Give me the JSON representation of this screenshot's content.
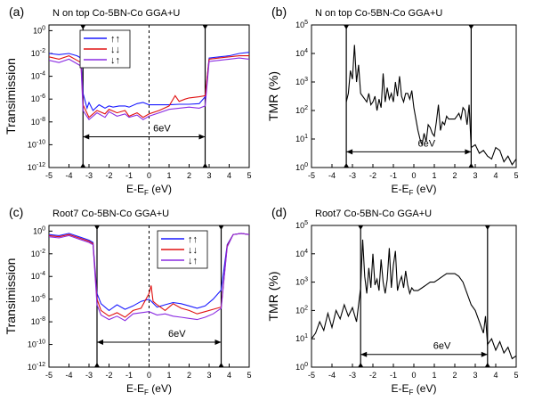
{
  "chart_data": [
    {
      "panel_label": "(a)",
      "title": "N on top Co-5BN-Co GGA+U",
      "type": "line",
      "xlabel_main": "E-E",
      "xlabel_sub": "F",
      "xlabel_unit": " (eV)",
      "ylabel": "Transimission",
      "xlim": [
        -5,
        5
      ],
      "ylim_log10": [
        -12,
        0.5
      ],
      "y_scale": "log",
      "x_ticks": [
        "-5",
        "-4",
        "-3",
        "-2",
        "-1",
        "0",
        "1",
        "2",
        "3",
        "4",
        "5"
      ],
      "y_ticks": [
        {
          "exp": 0,
          "label": "10",
          "sup": "0"
        },
        {
          "exp": -2,
          "label": "10",
          "sup": "-2"
        },
        {
          "exp": -4,
          "label": "10",
          "sup": "-4"
        },
        {
          "exp": -6,
          "label": "10",
          "sup": "-6"
        },
        {
          "exp": -8,
          "label": "10",
          "sup": "-8"
        },
        {
          "exp": -10,
          "label": "10",
          "sup": "-10"
        },
        {
          "exp": -12,
          "label": "10",
          "sup": "-12"
        }
      ],
      "vlines": [
        -3.3,
        2.8
      ],
      "fermi_line": 0,
      "gap_annotation": {
        "text": "6eV",
        "from": -3.3,
        "to": 2.8,
        "at_log10": -9.3
      },
      "legend": {
        "position": "top-left",
        "labels": [
          "↑↑",
          "↓↓",
          "↓↑"
        ]
      },
      "series": [
        {
          "color": "#1a1aff",
          "x": [
            -5,
            -4.5,
            -4,
            -3.6,
            -3.4,
            -3.3,
            -3.1,
            -3.0,
            -2.8,
            -2.5,
            -2.2,
            -2.0,
            -1.8,
            -1.5,
            -1.2,
            -1.0,
            -0.6,
            -0.3,
            0,
            0.5,
            1.0,
            1.5,
            2.0,
            2.5,
            2.8,
            3.0,
            3.5,
            4.0,
            4.5,
            5
          ],
          "y": [
            -2.0,
            -2.1,
            -2.0,
            -2.2,
            -2.4,
            -5.5,
            -6.8,
            -6.3,
            -7.0,
            -6.5,
            -6.8,
            -6.6,
            -6.7,
            -6.6,
            -6.6,
            -6.7,
            -6.4,
            -6.3,
            -6.5,
            -6.5,
            -6.5,
            -6.45,
            -6.45,
            -6.4,
            -5.8,
            -2.4,
            -2.3,
            -2.2,
            -2.0,
            -1.9
          ]
        },
        {
          "color": "#e01010",
          "x": [
            -5,
            -4.5,
            -4,
            -3.6,
            -3.4,
            -3.3,
            -3.0,
            -2.6,
            -2.2,
            -2.0,
            -1.6,
            -1.2,
            -1.0,
            -0.6,
            -0.3,
            0,
            0.5,
            1.0,
            1.3,
            1.5,
            1.8,
            2.0,
            2.5,
            2.8,
            3.0,
            3.5,
            4.0,
            4.5,
            5
          ],
          "y": [
            -2.3,
            -2.5,
            -2.2,
            -2.6,
            -2.8,
            -6.5,
            -7.6,
            -7.0,
            -7.3,
            -6.9,
            -7.2,
            -7.0,
            -7.5,
            -7.2,
            -7.6,
            -7.3,
            -7.0,
            -6.6,
            -5.7,
            -6.2,
            -6.0,
            -5.9,
            -5.8,
            -5.7,
            -2.5,
            -2.4,
            -2.3,
            -2.2,
            -2.2
          ]
        },
        {
          "color": "#8a2be2",
          "x": [
            -5,
            -4.5,
            -4,
            -3.6,
            -3.4,
            -3.3,
            -3.0,
            -2.6,
            -2.2,
            -2.0,
            -1.6,
            -1.2,
            -1.0,
            -0.6,
            -0.3,
            0,
            0.5,
            1.0,
            1.5,
            2.0,
            2.5,
            2.8,
            3.0,
            3.5,
            4.0,
            4.5,
            5
          ],
          "y": [
            -2.6,
            -2.8,
            -2.5,
            -2.9,
            -3.1,
            -7.0,
            -7.8,
            -7.2,
            -7.6,
            -7.1,
            -7.5,
            -7.3,
            -7.6,
            -7.4,
            -7.8,
            -7.5,
            -7.2,
            -6.9,
            -6.8,
            -6.7,
            -6.8,
            -6.6,
            -2.7,
            -2.6,
            -2.5,
            -2.4,
            -2.5
          ]
        }
      ]
    },
    {
      "panel_label": "(b)",
      "title": "N on top Co-5BN-Co GGA+U",
      "type": "line",
      "xlabel_main": "E-E",
      "xlabel_sub": "F",
      "xlabel_unit": " (eV)",
      "ylabel": "TMR (%)",
      "xlim": [
        -5,
        5
      ],
      "ylim_log10": [
        0,
        5
      ],
      "y_scale": "log",
      "x_ticks": [
        "-5",
        "-4",
        "-3",
        "-2",
        "-1",
        "0",
        "1",
        "2",
        "3",
        "4",
        "5"
      ],
      "y_ticks": [
        {
          "exp": 0,
          "label": "10",
          "sup": "0"
        },
        {
          "exp": 1,
          "label": "10",
          "sup": "1"
        },
        {
          "exp": 2,
          "label": "10",
          "sup": "2"
        },
        {
          "exp": 3,
          "label": "10",
          "sup": "3"
        },
        {
          "exp": 4,
          "label": "10",
          "sup": "4"
        },
        {
          "exp": 5,
          "label": "10",
          "sup": "5"
        }
      ],
      "vlines": [
        -3.3,
        2.8
      ],
      "gap_annotation": {
        "text": "6eV",
        "from": -3.3,
        "to": 2.8,
        "at_log10": 0.55
      },
      "series": [
        {
          "color": "#000000",
          "x": [
            -3.3,
            -3.2,
            -3.1,
            -3.0,
            -2.9,
            -2.8,
            -2.7,
            -2.6,
            -2.5,
            -2.4,
            -2.3,
            -2.2,
            -2.1,
            -2.0,
            -1.9,
            -1.8,
            -1.7,
            -1.6,
            -1.5,
            -1.4,
            -1.3,
            -1.2,
            -1.1,
            -1.0,
            -0.9,
            -0.8,
            -0.7,
            -0.6,
            -0.5,
            -0.4,
            -0.3,
            -0.2,
            -0.1,
            0,
            0.1,
            0.2,
            0.3,
            0.4,
            0.5,
            0.6,
            0.7,
            0.8,
            0.9,
            1.0,
            1.1,
            1.2,
            1.3,
            1.4,
            1.5,
            1.6,
            1.7,
            1.8,
            1.9,
            2.0,
            2.1,
            2.2,
            2.3,
            2.4,
            2.5,
            2.6,
            2.7,
            2.8,
            3.0,
            3.2,
            3.4,
            3.6,
            3.8,
            4.0,
            4.2,
            4.4,
            4.6,
            4.8,
            5.0
          ],
          "y": [
            2.3,
            2.6,
            3.4,
            3.1,
            4.3,
            3.0,
            3.6,
            2.6,
            2.5,
            2.4,
            2.3,
            2.6,
            2.2,
            2.3,
            2.5,
            2.0,
            2.4,
            2.1,
            3.3,
            2.3,
            2.8,
            2.4,
            2.6,
            2.3,
            3.0,
            2.5,
            3.2,
            2.5,
            2.3,
            2.6,
            2.6,
            2.4,
            2.7,
            2.1,
            1.7,
            1.3,
            1.0,
            0.8,
            1.2,
            0.9,
            1.5,
            1.4,
            1.2,
            1.1,
            1.6,
            2.2,
            1.3,
            1.6,
            1.5,
            1.8,
            1.7,
            1.7,
            1.7,
            1.7,
            1.8,
            1.9,
            1.7,
            2.1,
            2.0,
            1.5,
            2.2,
            0.7,
            0.8,
            0.5,
            0.6,
            0.4,
            0.3,
            0.7,
            0.6,
            0.2,
            0.4,
            0.1,
            0.3
          ]
        }
      ]
    },
    {
      "panel_label": "(c)",
      "title": "Root7 Co-5BN-Co GGA+U",
      "type": "line",
      "xlabel_main": "E-E",
      "xlabel_sub": "F",
      "xlabel_unit": " (eV)",
      "ylabel": "Transimission",
      "xlim": [
        -5,
        5
      ],
      "ylim_log10": [
        -12,
        0.5
      ],
      "y_scale": "log",
      "x_ticks": [
        "-5",
        "-4",
        "-3",
        "-2",
        "-1",
        "0",
        "1",
        "2",
        "3",
        "4",
        "5"
      ],
      "y_ticks": [
        {
          "exp": 0,
          "label": "10",
          "sup": "0"
        },
        {
          "exp": -2,
          "label": "10",
          "sup": "-2"
        },
        {
          "exp": -4,
          "label": "10",
          "sup": "-4"
        },
        {
          "exp": -6,
          "label": "10",
          "sup": "-6"
        },
        {
          "exp": -8,
          "label": "10",
          "sup": "-8"
        },
        {
          "exp": -10,
          "label": "10",
          "sup": "-10"
        },
        {
          "exp": -12,
          "label": "10",
          "sup": "-12"
        }
      ],
      "vlines": [
        -2.6,
        3.6
      ],
      "fermi_line": 0,
      "gap_annotation": {
        "text": "6eV",
        "from": -2.6,
        "to": 3.6,
        "at_log10": -9.8
      },
      "legend": {
        "position": "top-right",
        "labels": [
          "↑↑",
          "↓↓",
          "↓↑"
        ]
      },
      "series": [
        {
          "color": "#1a1aff",
          "x": [
            -5,
            -4.5,
            -4,
            -3.5,
            -3.0,
            -2.8,
            -2.6,
            -2.4,
            -2.0,
            -1.6,
            -1.2,
            -0.8,
            -0.4,
            0,
            0.4,
            0.8,
            1.2,
            1.6,
            2.0,
            2.4,
            2.8,
            3.2,
            3.6,
            3.9,
            4.2,
            4.6,
            5
          ],
          "y": [
            -0.3,
            -0.4,
            -0.2,
            -0.5,
            -0.8,
            -1.0,
            -5.5,
            -6.4,
            -7.0,
            -6.5,
            -6.9,
            -6.6,
            -6.2,
            -6.0,
            -6.7,
            -6.5,
            -6.3,
            -6.4,
            -6.6,
            -6.8,
            -6.6,
            -6.0,
            -5.2,
            -1.2,
            -0.3,
            -0.2,
            -0.3
          ]
        },
        {
          "color": "#e01010",
          "x": [
            -5,
            -4.5,
            -4,
            -3.5,
            -3.0,
            -2.8,
            -2.6,
            -2.4,
            -2.0,
            -1.6,
            -1.2,
            -0.8,
            -0.4,
            0,
            0.1,
            0.2,
            0.4,
            0.8,
            1.2,
            1.6,
            2.0,
            2.4,
            2.8,
            3.2,
            3.6,
            3.9,
            4.2,
            4.6,
            5
          ],
          "y": [
            -0.4,
            -0.5,
            -0.3,
            -0.6,
            -0.9,
            -1.1,
            -6.0,
            -7.0,
            -7.5,
            -7.2,
            -7.6,
            -7.0,
            -6.8,
            -5.5,
            -4.8,
            -6.2,
            -6.5,
            -7.0,
            -6.4,
            -6.8,
            -7.0,
            -7.3,
            -7.1,
            -6.9,
            -6.7,
            -1.3,
            -0.3,
            -0.2,
            -0.3
          ]
        },
        {
          "color": "#8a2be2",
          "x": [
            -5,
            -4.5,
            -4,
            -3.5,
            -3.0,
            -2.8,
            -2.6,
            -2.4,
            -2.0,
            -1.6,
            -1.2,
            -0.8,
            -0.4,
            0,
            0.4,
            0.8,
            1.2,
            1.6,
            2.0,
            2.4,
            2.8,
            3.2,
            3.6,
            3.9,
            4.2,
            4.6,
            5
          ],
          "y": [
            -0.5,
            -0.6,
            -0.4,
            -0.7,
            -1.0,
            -1.2,
            -6.5,
            -7.4,
            -7.8,
            -7.5,
            -7.9,
            -7.3,
            -7.2,
            -7.1,
            -7.4,
            -7.3,
            -7.5,
            -7.6,
            -7.7,
            -7.8,
            -7.6,
            -7.3,
            -6.8,
            -1.4,
            -0.3,
            -0.2,
            -0.3
          ]
        }
      ]
    },
    {
      "panel_label": "(d)",
      "title": "Root7 Co-5BN-Co GGA+U",
      "type": "line",
      "xlabel_main": "E-E",
      "xlabel_sub": "F",
      "xlabel_unit": " (eV)",
      "ylabel": "TMR (%)",
      "xlim": [
        -5,
        5
      ],
      "ylim_log10": [
        0,
        5
      ],
      "y_scale": "log",
      "x_ticks": [
        "-5",
        "-4",
        "-3",
        "-2",
        "-1",
        "0",
        "1",
        "2",
        "3",
        "4",
        "5"
      ],
      "y_ticks": [
        {
          "exp": 0,
          "label": "10",
          "sup": "0"
        },
        {
          "exp": 1,
          "label": "10",
          "sup": "1"
        },
        {
          "exp": 2,
          "label": "10",
          "sup": "2"
        },
        {
          "exp": 3,
          "label": "10",
          "sup": "3"
        },
        {
          "exp": 4,
          "label": "10",
          "sup": "4"
        },
        {
          "exp": 5,
          "label": "10",
          "sup": "5"
        }
      ],
      "vlines": [
        -2.6,
        3.6
      ],
      "gap_annotation": {
        "text": "6eV",
        "from": -2.6,
        "to": 3.6,
        "at_log10": 0.45
      },
      "series": [
        {
          "color": "#000000",
          "x": [
            -5,
            -4.8,
            -4.6,
            -4.4,
            -4.2,
            -4.0,
            -3.8,
            -3.6,
            -3.4,
            -3.2,
            -3.0,
            -2.8,
            -2.6,
            -2.5,
            -2.4,
            -2.3,
            -2.2,
            -2.1,
            -2.0,
            -1.9,
            -1.8,
            -1.7,
            -1.6,
            -1.5,
            -1.4,
            -1.3,
            -1.2,
            -1.1,
            -1.0,
            -0.9,
            -0.8,
            -0.7,
            -0.6,
            -0.5,
            -0.4,
            -0.3,
            -0.2,
            -0.1,
            0,
            0.2,
            0.4,
            0.6,
            0.8,
            1.0,
            1.2,
            1.4,
            1.6,
            1.8,
            2.0,
            2.2,
            2.4,
            2.6,
            2.8,
            3.0,
            3.2,
            3.4,
            3.5,
            3.6,
            3.8,
            4.0,
            4.2,
            4.4,
            4.6,
            4.8,
            5.0
          ],
          "y": [
            1.0,
            1.2,
            1.6,
            1.3,
            1.9,
            1.4,
            2.0,
            1.7,
            2.2,
            1.8,
            2.1,
            1.6,
            2.8,
            4.5,
            3.2,
            2.6,
            3.5,
            2.8,
            4.0,
            2.9,
            3.1,
            2.7,
            3.8,
            3.0,
            2.6,
            3.1,
            4.2,
            2.8,
            3.6,
            4.1,
            2.7,
            3.0,
            3.2,
            2.8,
            3.4,
            2.9,
            2.6,
            2.8,
            2.7,
            2.7,
            2.8,
            2.9,
            3.0,
            3.0,
            3.1,
            3.2,
            3.3,
            3.3,
            3.3,
            3.2,
            3.0,
            2.6,
            2.2,
            2.0,
            1.6,
            1.2,
            1.8,
            0.8,
            1.0,
            0.6,
            0.9,
            0.5,
            0.7,
            0.3,
            0.4
          ]
        }
      ]
    }
  ]
}
